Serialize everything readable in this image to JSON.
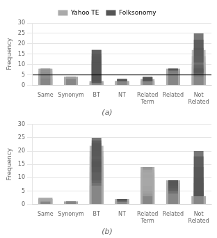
{
  "chart_data": [
    {
      "type": "bar",
      "title": "(a)",
      "categories": [
        "Same",
        "Synonym",
        "BT",
        "NT",
        "Related\nTerm",
        "Related",
        "Not\nRelated"
      ],
      "series": [
        {
          "name": "Yahoo TE",
          "color": "#aaaaaa",
          "values": [
            3,
            4,
            1,
            2,
            2,
            7,
            5
          ]
        },
        {
          "name": "Folksonomy",
          "color": "#555555",
          "values": [
            3,
            3,
            11,
            3,
            3,
            7,
            8
          ]
        },
        {
          "name": "Yahoo TE",
          "color": "#aaaaaa",
          "values": [
            3,
            4,
            1,
            2,
            2,
            6,
            4
          ]
        },
        {
          "name": "Folksonomy",
          "color": "#555555",
          "values": [
            3,
            3,
            10,
            3,
            3,
            7,
            9
          ]
        },
        {
          "name": "Yahoo TE",
          "color": "#aaaaaa",
          "values": [
            3,
            4,
            1,
            2,
            2,
            7,
            5
          ]
        },
        {
          "name": "Folksonomy",
          "color": "#555555",
          "values": [
            3,
            3,
            11,
            3,
            3,
            7,
            8
          ]
        },
        {
          "name": "Yahoo TE",
          "color": "#aaaaaa",
          "values": [
            4,
            4,
            1,
            2,
            2,
            7,
            6
          ]
        },
        {
          "name": "Folksonomy",
          "color": "#555555",
          "values": [
            4,
            4,
            12,
            3,
            3,
            7,
            9
          ]
        },
        {
          "name": "Yahoo TE",
          "color": "#aaaaaa",
          "values": [
            5,
            4,
            1,
            2,
            2,
            7,
            6
          ]
        },
        {
          "name": "Folksonomy",
          "color": "#555555",
          "values": [
            5,
            4,
            12,
            3,
            4,
            8,
            10
          ]
        },
        {
          "name": "Yahoo TE",
          "color": "#aaaaaa",
          "values": [
            6,
            4,
            2,
            2,
            2,
            7,
            9
          ]
        },
        {
          "name": "Folksonomy",
          "color": "#555555",
          "values": [
            6,
            4,
            14,
            3,
            4,
            8,
            14
          ]
        },
        {
          "name": "Yahoo TE",
          "color": "#aaaaaa",
          "values": [
            7,
            4,
            2,
            2,
            2,
            7,
            11
          ]
        },
        {
          "name": "Folksonomy",
          "color": "#555555",
          "values": [
            7,
            4,
            15,
            3,
            4,
            8,
            18
          ]
        },
        {
          "name": "Yahoo TE",
          "color": "#aaaaaa",
          "values": [
            8,
            4,
            2,
            2,
            3,
            8,
            14
          ]
        },
        {
          "name": "Folksonomy",
          "color": "#555555",
          "values": [
            8,
            4,
            17,
            3,
            4,
            8,
            22
          ]
        },
        {
          "name": "Yahoo TE",
          "color": "#aaaaaa",
          "values": [
            8,
            4,
            2,
            2,
            3,
            8,
            17
          ]
        },
        {
          "name": "Folksonomy",
          "color": "#555555",
          "values": [
            8,
            4,
            17,
            3,
            4,
            8,
            25
          ]
        }
      ],
      "ylabel": "Frequency",
      "ylim": [
        0,
        30
      ],
      "yticks": [
        0,
        5,
        10,
        15,
        20,
        25,
        30
      ],
      "grid": true,
      "legend": "top",
      "hline": 5
    },
    {
      "type": "bar",
      "title": "(b)",
      "categories": [
        "Same",
        "Synonym",
        "BT",
        "NT",
        "Related\nTerm",
        "Related",
        "Not\nRelated"
      ],
      "series": [
        {
          "name": "Yahoo TE",
          "color": "#aaaaaa",
          "values": [
            2,
            0.5,
            7,
            1,
            9,
            4,
            3
          ]
        },
        {
          "name": "Folksonomy",
          "color": "#555555",
          "values": [
            1,
            0.5,
            16,
            2,
            3,
            9,
            3
          ]
        },
        {
          "name": "Yahoo TE",
          "color": "#aaaaaa",
          "values": [
            2,
            0.5,
            7,
            1,
            9,
            4,
            3
          ]
        },
        {
          "name": "Folksonomy",
          "color": "#555555",
          "values": [
            1,
            0.5,
            16,
            2,
            3,
            9,
            3
          ]
        },
        {
          "name": "Yahoo TE",
          "color": "#aaaaaa",
          "values": [
            2,
            0.5,
            8,
            1,
            9,
            5,
            3
          ]
        },
        {
          "name": "Folksonomy",
          "color": "#555555",
          "values": [
            1,
            0.5,
            17,
            2,
            4,
            9,
            4
          ]
        },
        {
          "name": "Yahoo TE",
          "color": "#aaaaaa",
          "values": [
            2,
            1,
            9,
            1,
            10,
            5,
            3
          ]
        },
        {
          "name": "Folksonomy",
          "color": "#555555",
          "values": [
            1,
            1,
            18,
            2,
            5,
            9,
            5
          ]
        },
        {
          "name": "Yahoo TE",
          "color": "#aaaaaa",
          "values": [
            2,
            1,
            12,
            1.5,
            11,
            6,
            3
          ]
        },
        {
          "name": "Folksonomy",
          "color": "#555555",
          "values": [
            1.5,
            1,
            20,
            2,
            7,
            9,
            8
          ]
        },
        {
          "name": "Yahoo TE",
          "color": "#aaaaaa",
          "values": [
            2,
            1,
            14,
            1.5,
            12,
            7,
            3
          ]
        },
        {
          "name": "Folksonomy",
          "color": "#555555",
          "values": [
            2,
            1,
            22,
            2,
            9,
            9,
            10
          ]
        },
        {
          "name": "Yahoo TE",
          "color": "#aaaaaa",
          "values": [
            2.5,
            1,
            18,
            2,
            13,
            8,
            3
          ]
        },
        {
          "name": "Folksonomy",
          "color": "#555555",
          "values": [
            2,
            1,
            23,
            2,
            11,
            9,
            14
          ]
        },
        {
          "name": "Yahoo TE",
          "color": "#aaaaaa",
          "values": [
            2.5,
            1,
            20,
            2,
            14,
            9,
            3
          ]
        },
        {
          "name": "Folksonomy",
          "color": "#555555",
          "values": [
            2,
            1,
            24,
            2,
            14,
            9,
            18
          ]
        },
        {
          "name": "Yahoo TE",
          "color": "#aaaaaa",
          "values": [
            2.5,
            1,
            22,
            2,
            14,
            9,
            3
          ]
        },
        {
          "name": "Folksonomy",
          "color": "#555555",
          "values": [
            2,
            1,
            25,
            2,
            14,
            9,
            20
          ]
        }
      ],
      "ylabel": "Frequency",
      "ylim": [
        0,
        30
      ],
      "yticks": [
        0,
        5,
        10,
        15,
        20,
        25,
        30
      ],
      "grid": true
    }
  ]
}
